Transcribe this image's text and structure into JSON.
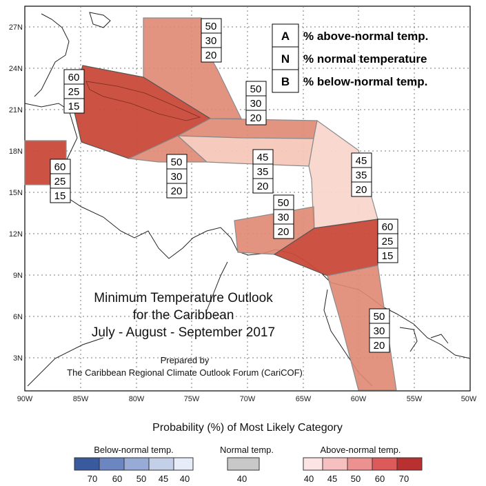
{
  "map": {
    "title_lines": [
      "Minimum Temperature Outlook",
      "for the Caribbean",
      "July - August - September 2017"
    ],
    "credit_lines": [
      "Prepared by",
      "The Caribbean Regional Climate Outlook Forum (CariCOF)"
    ],
    "lat_labels": [
      "27N",
      "24N",
      "21N",
      "18N",
      "15N",
      "12N",
      "9N",
      "6N",
      "3N"
    ],
    "lon_labels": [
      "90W",
      "85W",
      "80W",
      "75W",
      "70W",
      "65W",
      "60W",
      "55W",
      "50W"
    ],
    "legend_key": [
      {
        "code": "A",
        "text": "% above-normal temp."
      },
      {
        "code": "N",
        "text": "% normal temperature"
      },
      {
        "code": "B",
        "text": "% below-normal temp."
      }
    ],
    "regions": [
      {
        "name": "bahamas",
        "A": "50",
        "N": "30",
        "B": "20",
        "color": "#e08872"
      },
      {
        "name": "western-cuba-caymans",
        "A": "60",
        "N": "25",
        "B": "15",
        "color": "#c94a3a"
      },
      {
        "name": "belize",
        "A": "60",
        "N": "25",
        "B": "15",
        "color": "#c94a3a"
      },
      {
        "name": "jamaica",
        "A": "50",
        "N": "30",
        "B": "20",
        "color": "#e08872"
      },
      {
        "name": "hispaniola-north",
        "A": "50",
        "N": "30",
        "B": "20",
        "color": "#e08872"
      },
      {
        "name": "hispaniola-south-puerto-rico",
        "A": "45",
        "N": "35",
        "B": "20",
        "color": "#f6c7b8"
      },
      {
        "name": "leeward-islands",
        "A": "45",
        "N": "35",
        "B": "20",
        "color": "#f6c7b8"
      },
      {
        "name": "abc-islands",
        "A": "50",
        "N": "30",
        "B": "20",
        "color": "#e08872"
      },
      {
        "name": "trinidad-tobago",
        "A": "60",
        "N": "25",
        "B": "15",
        "color": "#c94a3a"
      },
      {
        "name": "guianas",
        "A": "50",
        "N": "30",
        "B": "20",
        "color": "#e08872"
      }
    ]
  },
  "scale": {
    "title": "Probability (%) of Most Likely Category",
    "below": {
      "label": "Below-normal temp.",
      "ticks": [
        "70",
        "60",
        "50",
        "45",
        "40"
      ],
      "colors": [
        "#3a5a9e",
        "#6b86c0",
        "#97abd6",
        "#c4cfe8",
        "#e6edf8"
      ]
    },
    "normal": {
      "label": "Normal temp.",
      "ticks": [
        "40"
      ],
      "colors": [
        "#c8c8c8"
      ]
    },
    "above": {
      "label": "Above-normal temp.",
      "ticks": [
        "40",
        "45",
        "50",
        "60",
        "70"
      ],
      "colors": [
        "#fde4e4",
        "#f7c0c0",
        "#ec9090",
        "#dd5a5a",
        "#b8302f"
      ]
    }
  }
}
